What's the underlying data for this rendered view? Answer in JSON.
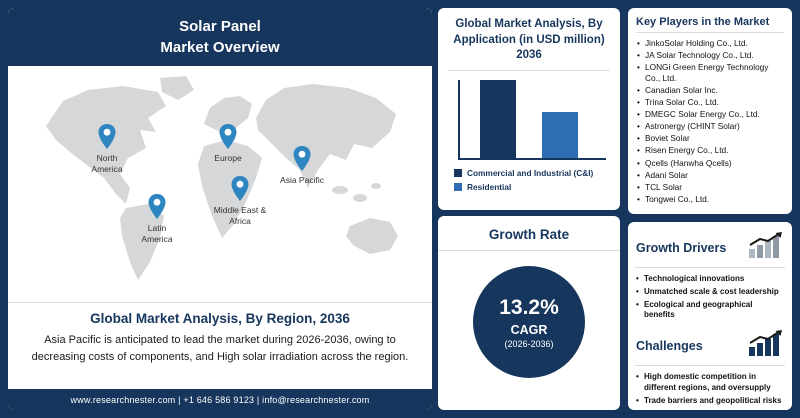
{
  "left_panel": {
    "title": "Solar Panel\nMarket Overview",
    "map_pins": [
      {
        "label": "North America"
      },
      {
        "label": "Latin America"
      },
      {
        "label": "Europe"
      },
      {
        "label": "Middle East & Africa"
      },
      {
        "label": "Asia Pacific"
      }
    ],
    "subtitle": "Global Market Analysis, By Region, 2036",
    "description": "Asia Pacific is anticipated to lead the market during 2026-2036, owing to decreasing costs of components, and High solar irradiation across the region.",
    "footer": "www.researchnester.com | +1 646 586 9123 | info@researchnester.com"
  },
  "chart_data": {
    "type": "bar",
    "title": "Global Market Analysis, By Application (in USD million) 2036",
    "categories": [
      "Commercial and Industrial (C&I)",
      "Residential"
    ],
    "values": [
      100,
      58
    ],
    "value_note": "relative heights estimated from bars; value axis unlabeled",
    "colors": [
      "#17365d",
      "#2e6db4"
    ],
    "legend_position": "bottom",
    "grid": false
  },
  "growth_rate": {
    "title": "Growth Rate",
    "value": "13.2%",
    "label": "CAGR",
    "period": "(2026-2036)"
  },
  "key_players": {
    "title": "Key Players in the Market",
    "items": [
      "JinkoSolar Holding Co., Ltd.",
      "JA Solar Technology Co., Ltd.",
      "LONGi Green Energy Technology Co., Ltd.",
      "Canadian Solar Inc.",
      "Trina Solar Co., Ltd.",
      "DMEGC Solar Energy Co., Ltd.",
      "Astronergy (CHINT Solar)",
      "Boviet Solar",
      "Risen Energy Co., Ltd.",
      "Qcells (Hanwha Qcells)",
      "Adani Solar",
      "TCL Solar",
      "Tongwei Co., Ltd."
    ]
  },
  "growth_drivers": {
    "title": "Growth Drivers",
    "items": [
      "Technological innovations",
      "Unmatched scale & cost leadership",
      "Ecological and geographical benefits"
    ]
  },
  "challenges": {
    "title": "Challenges",
    "items": [
      "High domestic competition in different regions, and oversupply",
      "Trade barriers and geopolitical risks"
    ]
  }
}
